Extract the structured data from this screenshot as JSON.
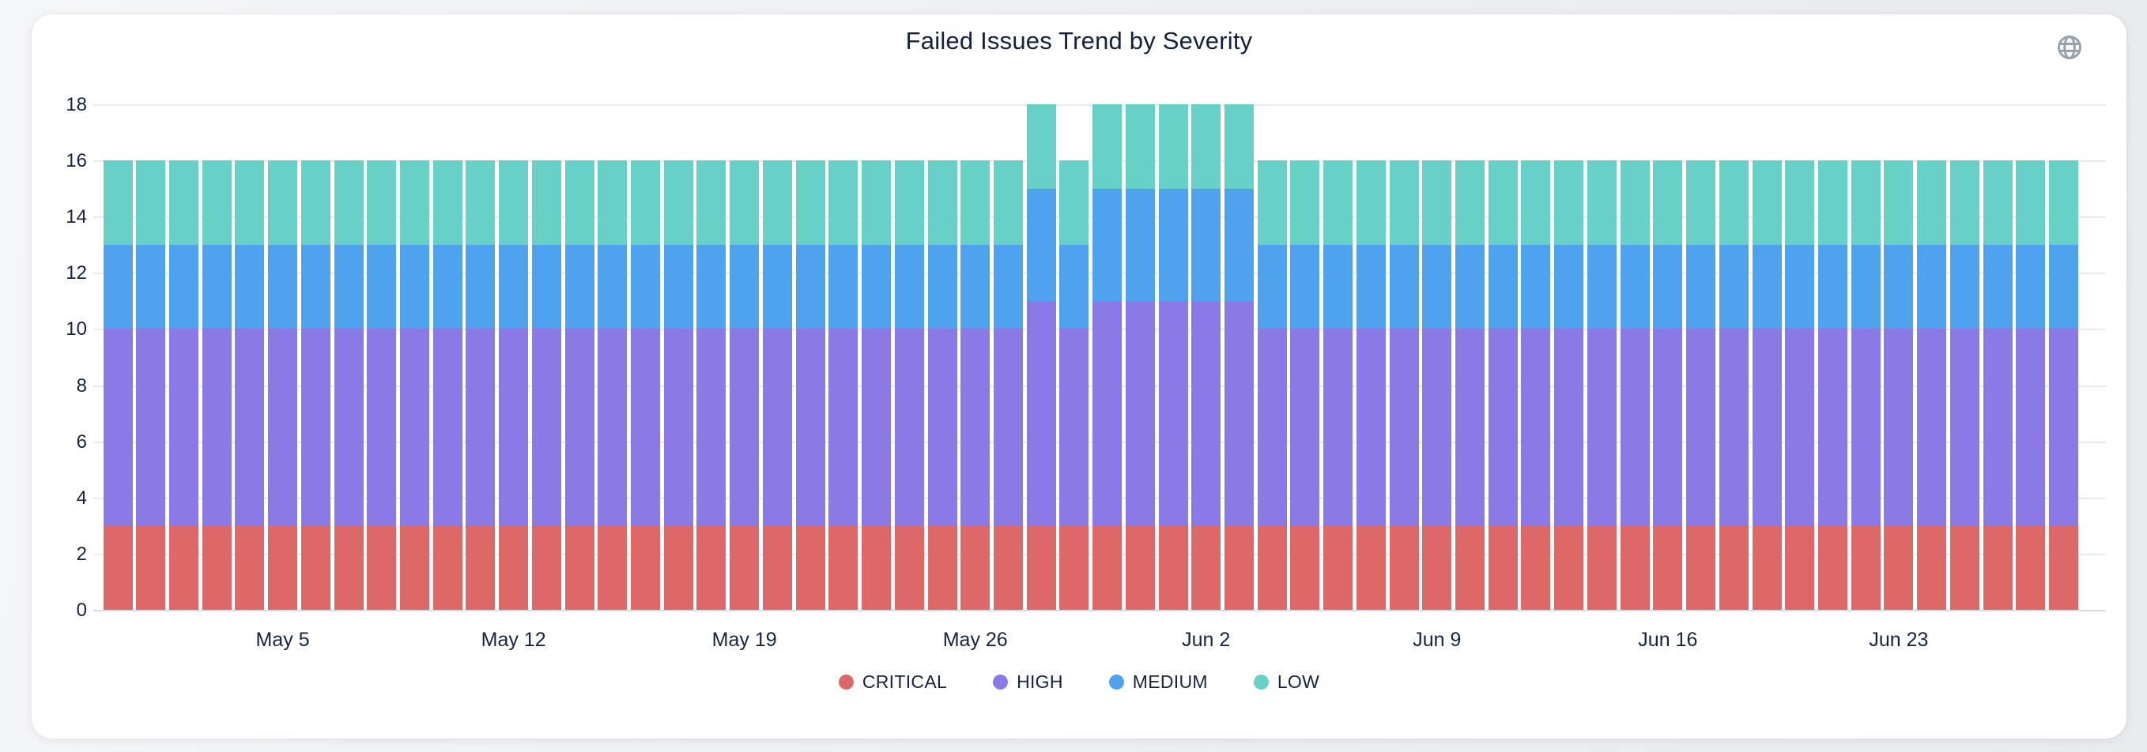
{
  "card": {
    "title": "Failed Issues Trend by Severity"
  },
  "icons": {
    "globe": "globe-icon"
  },
  "chart_data": {
    "type": "bar",
    "stacked": true,
    "title": "Failed Issues Trend by Severity",
    "xlabel": "",
    "ylabel": "",
    "ylim": [
      0,
      18
    ],
    "y_ticks": [
      0,
      2,
      4,
      6,
      8,
      10,
      12,
      14,
      16,
      18
    ],
    "grid": true,
    "legend_position": "bottom",
    "categories": [
      "Apr 30",
      "May 1",
      "May 2",
      "May 3",
      "May 4",
      "May 5",
      "May 6",
      "May 7",
      "May 8",
      "May 9",
      "May 10",
      "May 11",
      "May 12",
      "May 13",
      "May 14",
      "May 15",
      "May 16",
      "May 17",
      "May 18",
      "May 19",
      "May 20",
      "May 21",
      "May 22",
      "May 23",
      "May 24",
      "May 25",
      "May 26",
      "May 27",
      "May 28",
      "May 29",
      "May 30",
      "May 31",
      "Jun 1",
      "Jun 2",
      "Jun 3",
      "Jun 4",
      "Jun 5",
      "Jun 6",
      "Jun 7",
      "Jun 8",
      "Jun 9",
      "Jun 10",
      "Jun 11",
      "Jun 12",
      "Jun 13",
      "Jun 14",
      "Jun 15",
      "Jun 16",
      "Jun 17",
      "Jun 18",
      "Jun 19",
      "Jun 20",
      "Jun 21",
      "Jun 22",
      "Jun 23",
      "Jun 24",
      "Jun 25",
      "Jun 26",
      "Jun 27",
      "Jun 28"
    ],
    "x_tick_labels": [
      "May 5",
      "May 12",
      "May 19",
      "May 26",
      "Jun 2",
      "Jun 9",
      "Jun 16",
      "Jun 23"
    ],
    "x_tick_positions": [
      5,
      12,
      19,
      26,
      33,
      40,
      47,
      54
    ],
    "series": [
      {
        "name": "CRITICAL",
        "color": "#dc6868",
        "values": [
          3,
          3,
          3,
          3,
          3,
          3,
          3,
          3,
          3,
          3,
          3,
          3,
          3,
          3,
          3,
          3,
          3,
          3,
          3,
          3,
          3,
          3,
          3,
          3,
          3,
          3,
          3,
          3,
          3,
          3,
          3,
          3,
          3,
          3,
          3,
          3,
          3,
          3,
          3,
          3,
          3,
          3,
          3,
          3,
          3,
          3,
          3,
          3,
          3,
          3,
          3,
          3,
          3,
          3,
          3,
          3,
          3,
          3,
          3,
          3
        ]
      },
      {
        "name": "HIGH",
        "color": "#8b79e6",
        "values": [
          7,
          7,
          7,
          7,
          7,
          7,
          7,
          7,
          7,
          7,
          7,
          7,
          7,
          7,
          7,
          7,
          7,
          7,
          7,
          7,
          7,
          7,
          7,
          7,
          7,
          7,
          7,
          7,
          8,
          7,
          8,
          8,
          8,
          8,
          8,
          7,
          7,
          7,
          7,
          7,
          7,
          7,
          7,
          7,
          7,
          7,
          7,
          7,
          7,
          7,
          7,
          7,
          7,
          7,
          7,
          7,
          7,
          7,
          7,
          7
        ]
      },
      {
        "name": "MEDIUM",
        "color": "#4fa2ee",
        "values": [
          3,
          3,
          3,
          3,
          3,
          3,
          3,
          3,
          3,
          3,
          3,
          3,
          3,
          3,
          3,
          3,
          3,
          3,
          3,
          3,
          3,
          3,
          3,
          3,
          3,
          3,
          3,
          3,
          4,
          3,
          4,
          4,
          4,
          4,
          4,
          3,
          3,
          3,
          3,
          3,
          3,
          3,
          3,
          3,
          3,
          3,
          3,
          3,
          3,
          3,
          3,
          3,
          3,
          3,
          3,
          3,
          3,
          3,
          3,
          3
        ]
      },
      {
        "name": "LOW",
        "color": "#67d1c7",
        "values": [
          3,
          3,
          3,
          3,
          3,
          3,
          3,
          3,
          3,
          3,
          3,
          3,
          3,
          3,
          3,
          3,
          3,
          3,
          3,
          3,
          3,
          3,
          3,
          3,
          3,
          3,
          3,
          3,
          3,
          3,
          3,
          3,
          3,
          3,
          3,
          3,
          3,
          3,
          3,
          3,
          3,
          3,
          3,
          3,
          3,
          3,
          3,
          3,
          3,
          3,
          3,
          3,
          3,
          3,
          3,
          3,
          3,
          3,
          3,
          3
        ]
      }
    ]
  },
  "colors": {
    "title_text": "#13223c",
    "axis_text": "#15233e",
    "gridline": "#e8eaf0",
    "axis_line": "#d6dbe6",
    "card_bg": "#ffffff",
    "page_bg": "#eceef2",
    "globe_icon": "#99a1ad"
  }
}
